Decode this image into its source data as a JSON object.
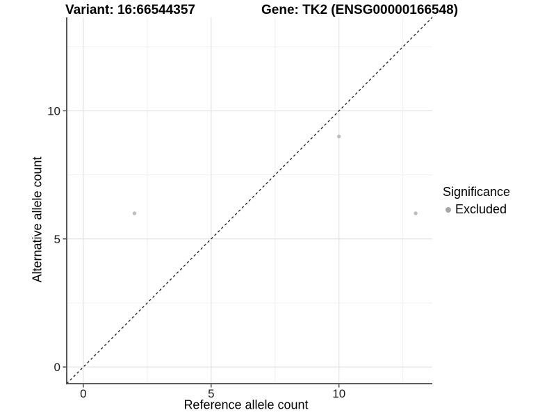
{
  "chart_data": {
    "type": "scatter",
    "title_left": "Variant: 16:66544357",
    "title_right": "Gene: TK2 (ENSG00000166548)",
    "xlabel": "Reference allele count",
    "ylabel": "Alternative allele count",
    "xlim": [
      -0.65,
      13.65
    ],
    "ylim": [
      -0.65,
      13.65
    ],
    "x_ticks": [
      0,
      5,
      10
    ],
    "y_ticks": [
      0,
      5,
      10
    ],
    "x_minor_ticks": [
      2.5,
      7.5,
      12.5
    ],
    "y_minor_ticks": [
      2.5,
      7.5,
      12.5
    ],
    "grid": "major+minor",
    "identity_line": {
      "style": "dashed",
      "slope": 1,
      "intercept": 0
    },
    "series": [
      {
        "name": "Excluded",
        "color": "#bdbdbd",
        "points": [
          {
            "x": 2,
            "y": 6
          },
          {
            "x": 10,
            "y": 9
          },
          {
            "x": 13,
            "y": 6
          }
        ]
      }
    ],
    "legend": {
      "title": "Significance",
      "position": "right",
      "entries": [
        {
          "label": "Excluded",
          "color": "#a6a6a6"
        }
      ]
    }
  },
  "colors": {
    "background": "#ffffff",
    "grid_major": "#e2e2e2",
    "grid_minor": "#efefef",
    "axis_line": "#474747",
    "tick": "#333333",
    "tick_label": "#1a1a1a",
    "identity_line": "#1a1a1a"
  }
}
